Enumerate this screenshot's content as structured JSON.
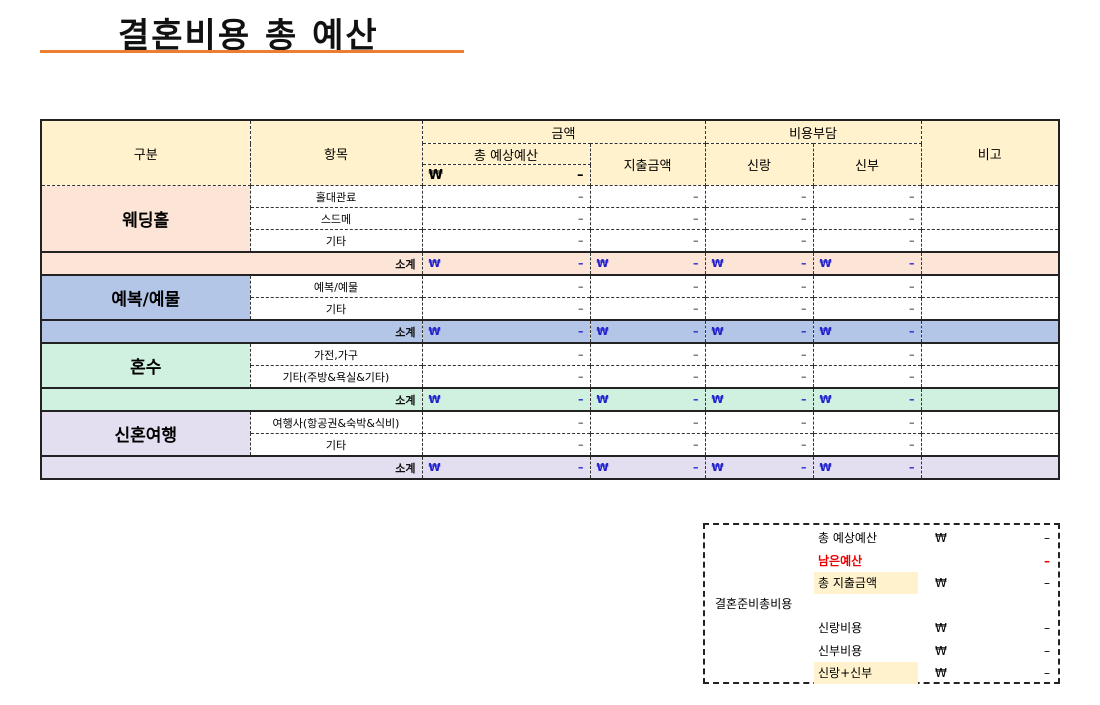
{
  "title": "결혼비용 총 예산",
  "header": {
    "category": "구분",
    "item": "항목",
    "amount": "금액",
    "total_budget": "총 예상예산",
    "total_budget_won": "₩",
    "total_budget_value": "–",
    "spent": "지출금액",
    "cost_share": "비용부담",
    "groom": "신랑",
    "bride": "신부",
    "note": "비고"
  },
  "groups": [
    {
      "name": "웨딩홀",
      "color": "#fce4d6",
      "items": [
        "홀대관료",
        "스드메",
        "기타"
      ]
    },
    {
      "name": "예복/예물",
      "color": "#b4c6e7",
      "items": [
        "예복/예물",
        "기타"
      ]
    },
    {
      "name": "혼수",
      "color": "#d0f0e0",
      "items": [
        "가전,가구",
        "기타(주방&욕실&기타)"
      ]
    },
    {
      "name": "신혼여행",
      "color": "#e4dff0",
      "items": [
        "여행사(항공권&숙박&식비)",
        "기타"
      ]
    }
  ],
  "subtotal_label": "소계",
  "currency": "₩",
  "dash": "–",
  "summary": {
    "label": "결혼준비총비용",
    "rows": [
      {
        "label": "총 예상예산",
        "won": "₩",
        "value": "–"
      },
      {
        "label": "남은예산",
        "won": "",
        "value": "–",
        "red": true
      },
      {
        "label": "총 지출금액",
        "won": "₩",
        "value": "–",
        "highlight": true
      },
      {
        "label": "",
        "won": "",
        "value": ""
      },
      {
        "label": "신랑비용",
        "won": "₩",
        "value": "–"
      },
      {
        "label": "신부비용",
        "won": "₩",
        "value": "–"
      },
      {
        "label": "신랑+신부",
        "won": "₩",
        "value": "–",
        "highlight": true
      }
    ]
  }
}
